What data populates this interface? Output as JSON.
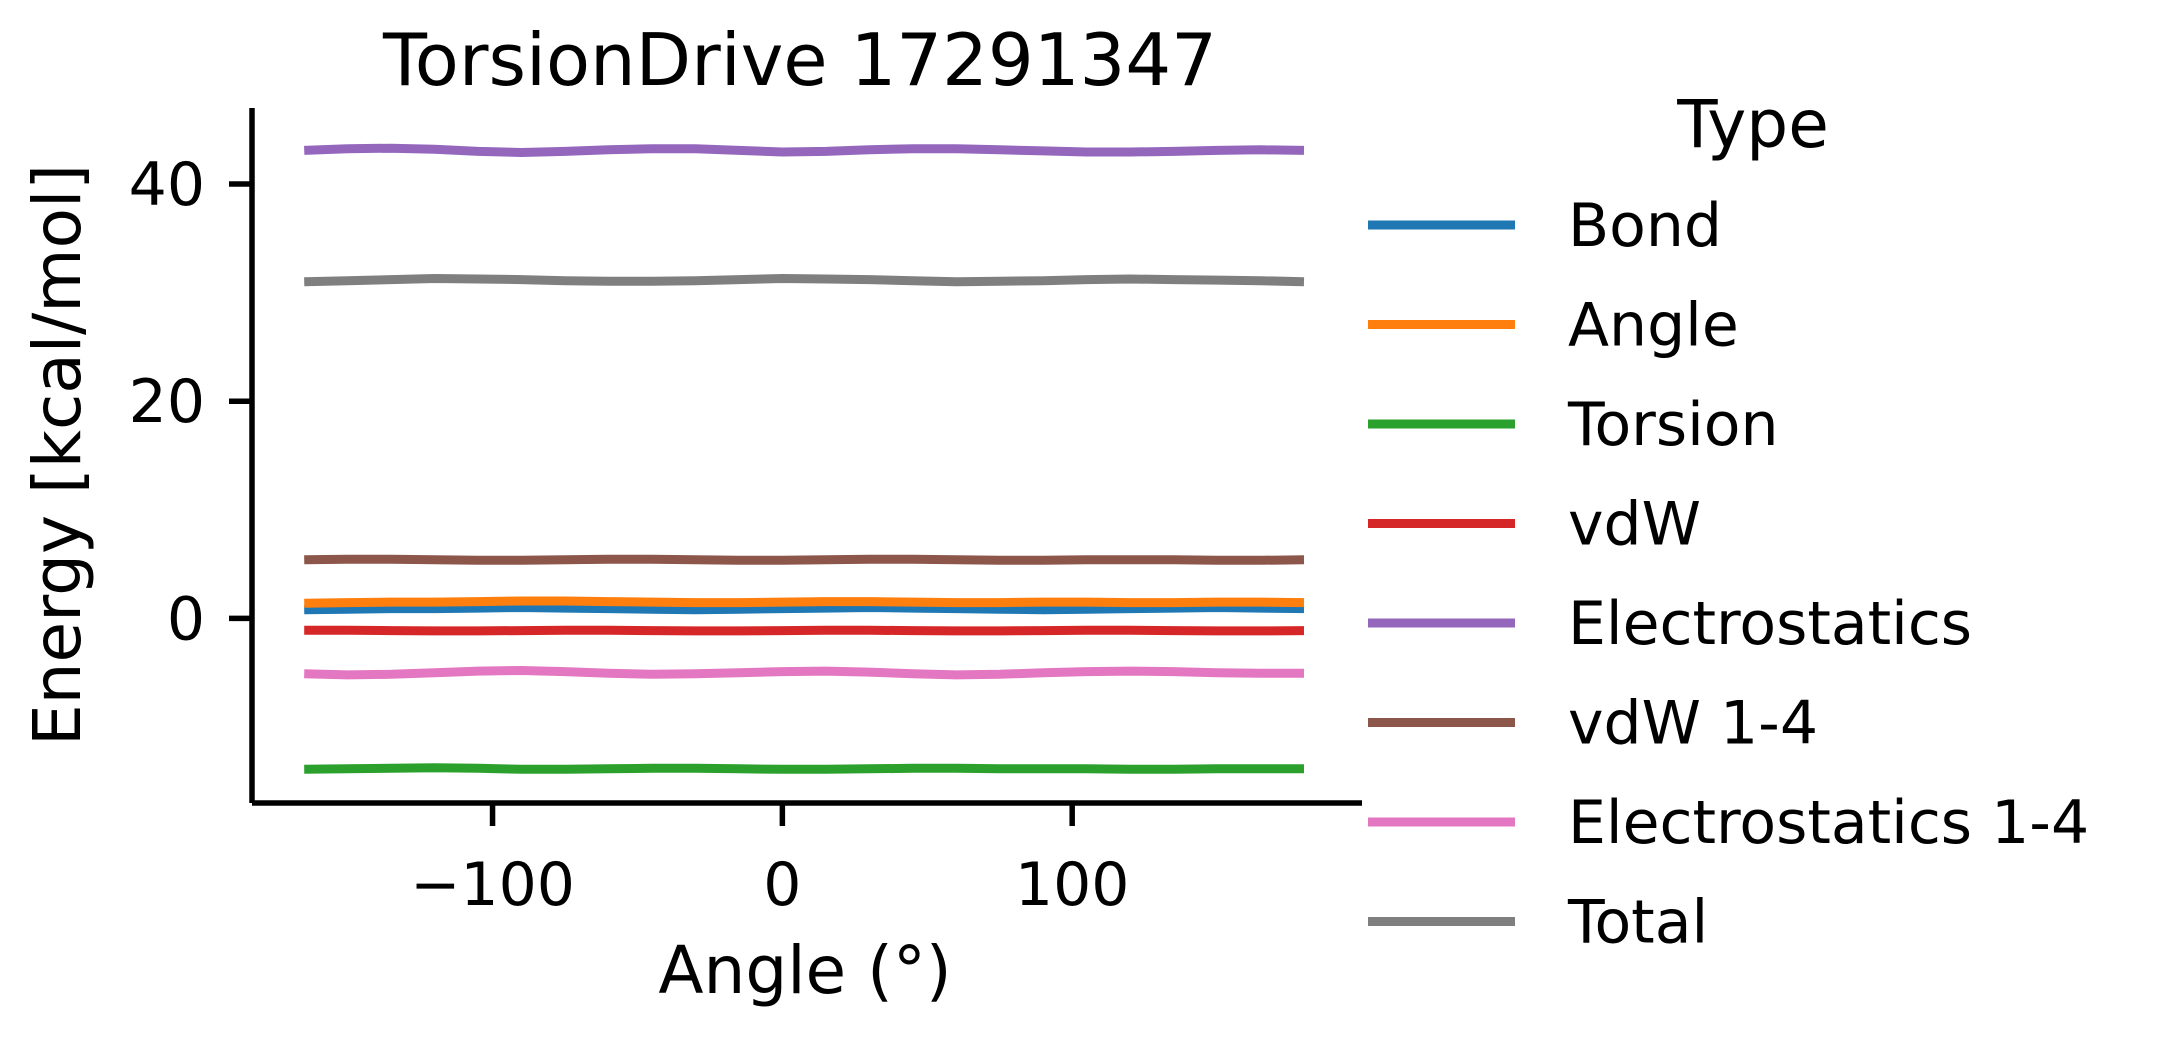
{
  "chart_data": {
    "type": "line",
    "title": "TorsionDrive 17291347",
    "xlabel": "Angle (°)",
    "ylabel": "Energy [kcal/mol]",
    "xlim": [
      -183,
      200
    ],
    "ylim": [
      -17,
      47
    ],
    "xticks": [
      -100,
      0,
      100
    ],
    "xtick_labels": [
      "−100",
      "0",
      "100"
    ],
    "yticks": [
      0,
      20,
      40
    ],
    "ytick_labels": [
      "0",
      "20",
      "40"
    ],
    "grid": false,
    "legend": {
      "title": "Type",
      "placement": "outside-right"
    },
    "x": [
      -165,
      -150,
      -135,
      -120,
      -105,
      -90,
      -75,
      -60,
      -45,
      -30,
      -15,
      0,
      15,
      30,
      45,
      60,
      75,
      90,
      105,
      120,
      135,
      150,
      165,
      180
    ],
    "series": [
      {
        "name": "Bond",
        "color": "#1f77b4",
        "values": [
          0.8,
          0.85,
          0.9,
          0.9,
          0.95,
          1.0,
          0.95,
          0.9,
          0.85,
          0.8,
          0.85,
          0.9,
          0.95,
          1.0,
          0.95,
          0.9,
          0.85,
          0.8,
          0.85,
          0.9,
          0.95,
          1.0,
          0.95,
          0.9
        ]
      },
      {
        "name": "Angle",
        "color": "#ff7f0e",
        "values": [
          1.4,
          1.45,
          1.5,
          1.5,
          1.55,
          1.6,
          1.6,
          1.55,
          1.5,
          1.45,
          1.45,
          1.5,
          1.55,
          1.55,
          1.5,
          1.45,
          1.45,
          1.5,
          1.5,
          1.45,
          1.45,
          1.5,
          1.5,
          1.45
        ]
      },
      {
        "name": "Torsion",
        "color": "#2ca02c",
        "values": [
          -13.9,
          -13.85,
          -13.8,
          -13.75,
          -13.8,
          -13.9,
          -13.9,
          -13.85,
          -13.8,
          -13.8,
          -13.85,
          -13.9,
          -13.9,
          -13.85,
          -13.8,
          -13.8,
          -13.85,
          -13.85,
          -13.85,
          -13.9,
          -13.9,
          -13.85,
          -13.85,
          -13.85
        ]
      },
      {
        "name": "vdW",
        "color": "#d62728",
        "values": [
          -1.1,
          -1.1,
          -1.12,
          -1.15,
          -1.15,
          -1.12,
          -1.1,
          -1.1,
          -1.12,
          -1.15,
          -1.15,
          -1.12,
          -1.1,
          -1.1,
          -1.12,
          -1.15,
          -1.15,
          -1.12,
          -1.1,
          -1.1,
          -1.12,
          -1.15,
          -1.15,
          -1.12
        ]
      },
      {
        "name": "Electrostatics",
        "color": "#9467bd",
        "values": [
          43.1,
          43.25,
          43.3,
          43.2,
          43.0,
          42.9,
          43.0,
          43.15,
          43.25,
          43.25,
          43.1,
          42.95,
          43.0,
          43.15,
          43.25,
          43.25,
          43.15,
          43.05,
          42.95,
          42.95,
          43.0,
          43.1,
          43.15,
          43.1
        ]
      },
      {
        "name": "vdW 1-4",
        "color": "#8c564b",
        "values": [
          5.4,
          5.45,
          5.45,
          5.4,
          5.35,
          5.35,
          5.4,
          5.45,
          5.45,
          5.4,
          5.35,
          5.35,
          5.4,
          5.45,
          5.45,
          5.4,
          5.35,
          5.35,
          5.4,
          5.4,
          5.4,
          5.35,
          5.35,
          5.4
        ]
      },
      {
        "name": "Electrostatics 1-4",
        "color": "#e377c2",
        "values": [
          -5.1,
          -5.2,
          -5.15,
          -5.0,
          -4.85,
          -4.8,
          -4.9,
          -5.05,
          -5.15,
          -5.1,
          -5.0,
          -4.9,
          -4.85,
          -4.95,
          -5.1,
          -5.2,
          -5.15,
          -5.0,
          -4.9,
          -4.85,
          -4.9,
          -5.0,
          -5.05,
          -5.05
        ]
      },
      {
        "name": "Total",
        "color": "#7f7f7f",
        "values": [
          31.0,
          31.1,
          31.2,
          31.3,
          31.25,
          31.2,
          31.1,
          31.05,
          31.05,
          31.1,
          31.2,
          31.3,
          31.25,
          31.2,
          31.1,
          31.0,
          31.05,
          31.1,
          31.2,
          31.25,
          31.2,
          31.15,
          31.1,
          31.0
        ]
      }
    ]
  }
}
